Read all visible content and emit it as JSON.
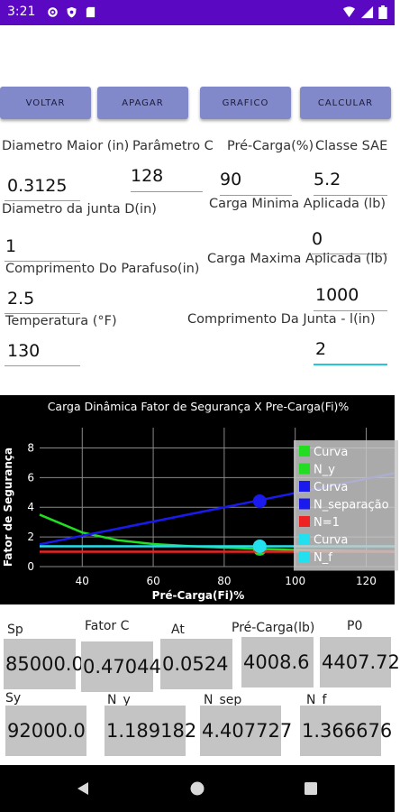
{
  "status_bar": {
    "time": "3:21"
  },
  "buttons": {
    "back": "VOLTAR",
    "clear": "APAGAR",
    "chart": "GRAFICO",
    "calculate": "CALCULAR"
  },
  "form": {
    "major_diameter": {
      "label": "Diametro Maior (in)",
      "value": "0.3125"
    },
    "param_c": {
      "label": "Parâmetro C",
      "value": "128"
    },
    "preload_pct": {
      "label": "Pré-Carga(%)",
      "value": "90"
    },
    "sae_class": {
      "label": "Classe SAE",
      "value": "5.2"
    },
    "joint_diameter": {
      "label": "Diametro da junta D(in)",
      "value": "1"
    },
    "min_load": {
      "label": "Carga Minima Aplicada (lb)",
      "value": "0"
    },
    "bolt_length": {
      "label": "Comprimento Do Parafuso(in)",
      "value": "2.5"
    },
    "max_load": {
      "label": "Carga Maxima Aplicada (lb)",
      "value": "1000"
    },
    "temperature": {
      "label": "Temperatura (°F)",
      "value": "130"
    },
    "joint_length": {
      "label": "Comprimento Da Junta - l(in)",
      "value": "2"
    }
  },
  "chart_data": {
    "type": "line",
    "title": "Carga Dinâmica Fator de Segurança X Pre-Carga(Fi)%",
    "xlabel": "Pré-Carga(Fi)%",
    "ylabel": "Fator de Segurança",
    "xlim": [
      28,
      128
    ],
    "ylim": [
      0,
      9
    ],
    "x_ticks": [
      40,
      60,
      80,
      100,
      120
    ],
    "y_ticks": [
      0,
      2,
      4,
      6,
      8
    ],
    "grid": true,
    "legend_position": "right",
    "series": [
      {
        "name": "Curva",
        "color": "#22dd22",
        "x": [
          28,
          40,
          50,
          60,
          70,
          80,
          90,
          100,
          110,
          128
        ],
        "values": [
          3.5,
          2.3,
          1.78,
          1.52,
          1.38,
          1.28,
          1.19,
          1.12,
          1.07,
          1.0
        ]
      },
      {
        "name": "N_y",
        "color": "#22dd22",
        "x": [
          90
        ],
        "values": [
          1.19
        ]
      },
      {
        "name": "Curva",
        "color": "#1a1aee",
        "x": [
          28,
          128
        ],
        "values": [
          1.5,
          6.3
        ]
      },
      {
        "name": "N_separação",
        "color": "#1a1aee",
        "x": [
          90
        ],
        "values": [
          4.41
        ]
      },
      {
        "name": "N=1",
        "color": "#ee2222",
        "x": [
          28,
          128
        ],
        "values": [
          1.0,
          1.0
        ]
      },
      {
        "name": "Curva",
        "color": "#22e0ee",
        "x": [
          28,
          128
        ],
        "values": [
          1.37,
          1.37
        ]
      },
      {
        "name": "N_f",
        "color": "#22e0ee",
        "x": [
          90
        ],
        "values": [
          1.37
        ]
      }
    ]
  },
  "results": {
    "sp": {
      "label": "Sp",
      "value": "85000.0"
    },
    "fator_c": {
      "label": "Fator C",
      "value": "0.47044"
    },
    "at": {
      "label": "At",
      "value": "0.0524"
    },
    "pre_carga": {
      "label": "Pré-Carga(lb)",
      "value": "4008.6"
    },
    "p0": {
      "label": "P0",
      "value": "4407.72"
    },
    "sy": {
      "label": "Sy",
      "value": "92000.0"
    },
    "n_y": {
      "label": "N_y",
      "value": "1.189182"
    },
    "n_sep": {
      "label": "N_sep",
      "value": "4.407727"
    },
    "n_f": {
      "label": "N_f",
      "value": "1.366676"
    }
  }
}
